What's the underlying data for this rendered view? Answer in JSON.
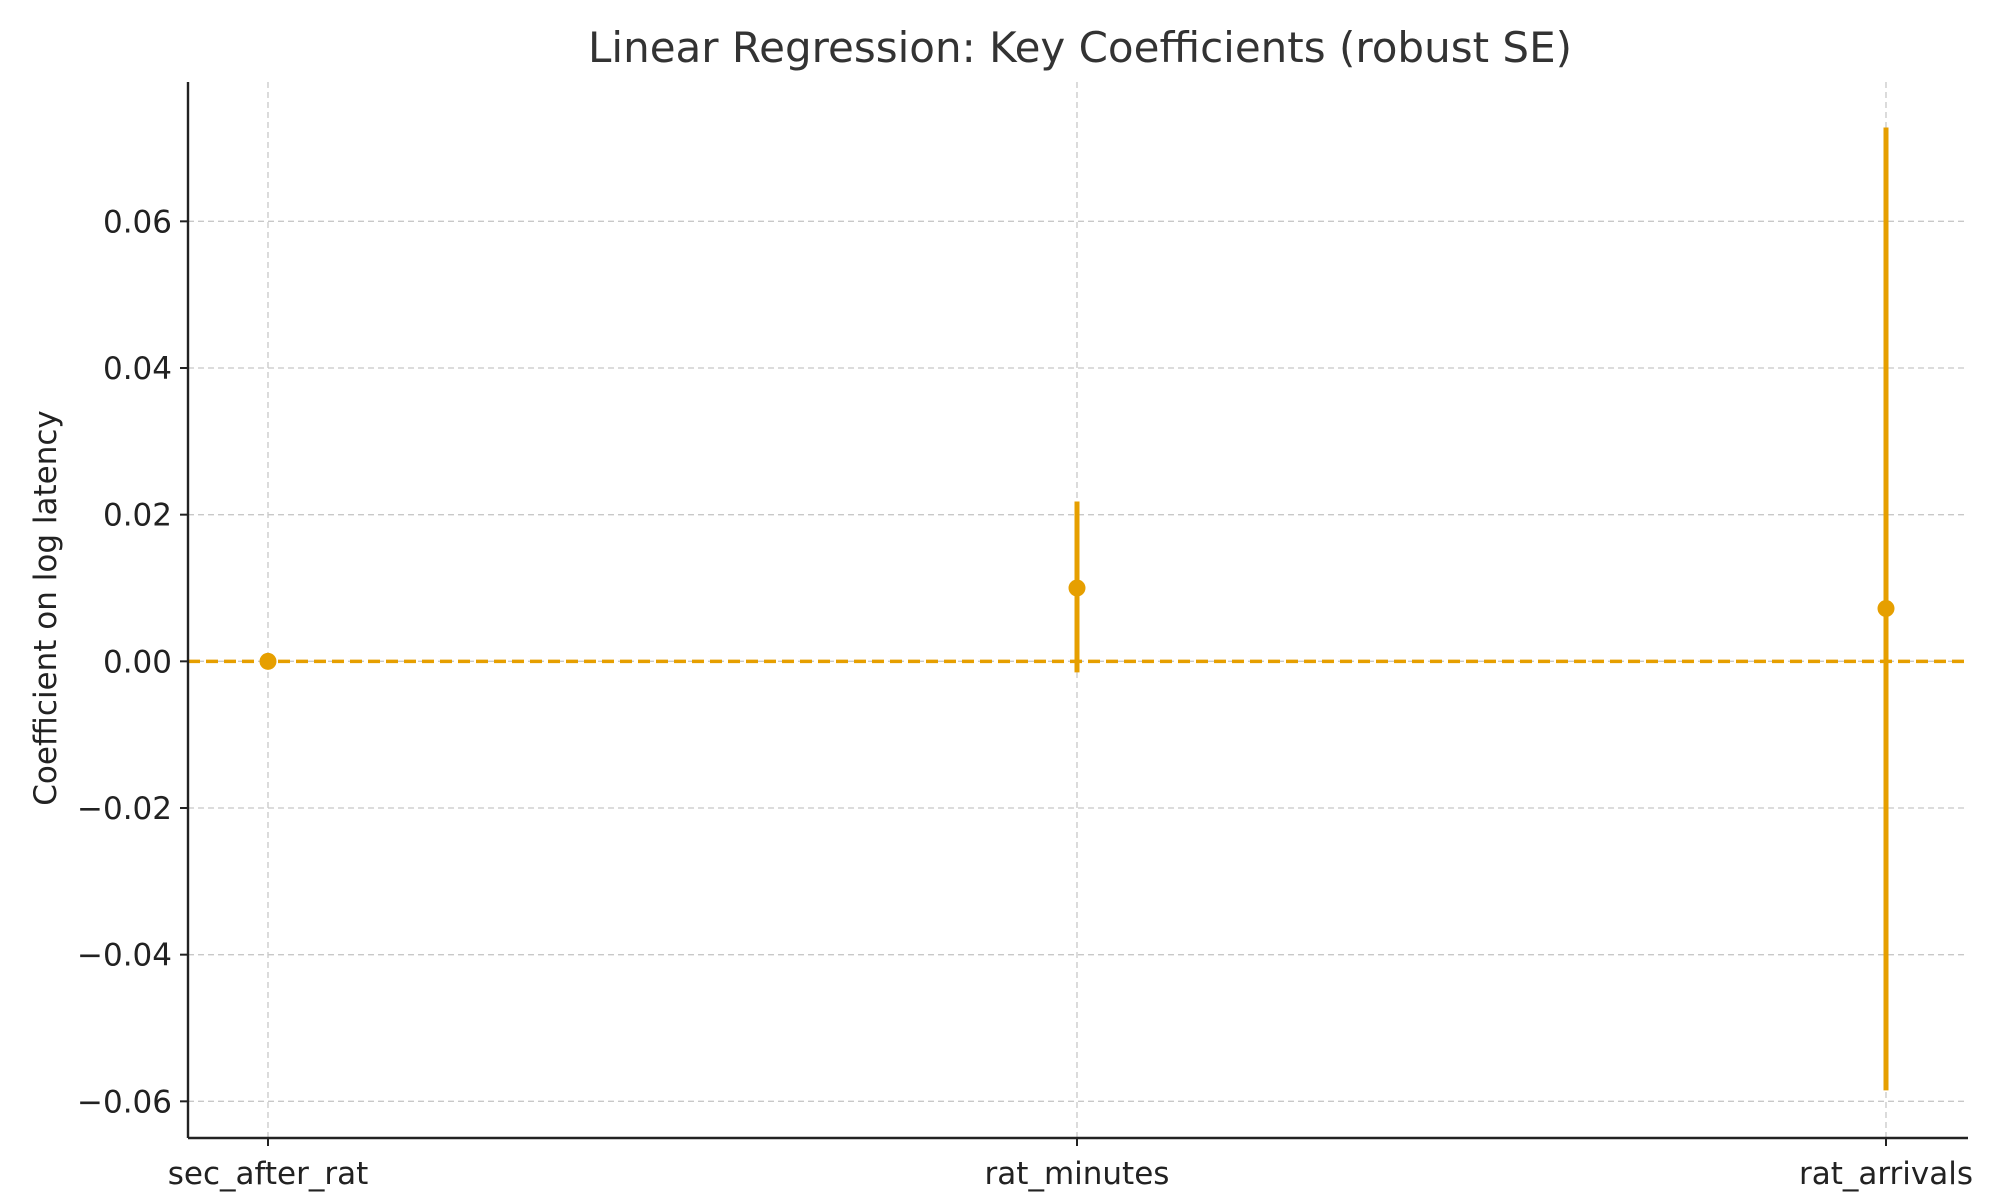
{
  "chart_data": {
    "type": "errorbar",
    "title": "Linear Regression: Key Coefficients (robust SE)",
    "xlabel": "",
    "ylabel": "Coefficient on log latency",
    "categories": [
      "sec_after_rat",
      "rat_minutes",
      "rat_arrivals"
    ],
    "estimates": [
      0.0,
      0.01,
      0.0072
    ],
    "ci_lower": [
      0.0,
      -0.0015,
      -0.0585
    ],
    "ci_upper": [
      0.0,
      0.0218,
      0.0728
    ],
    "ylim": [
      -0.065,
      0.079
    ],
    "yticks": [
      -0.06,
      -0.04,
      -0.02,
      0.0,
      0.02,
      0.04,
      0.06
    ],
    "ytick_labels": [
      "−0.06",
      "−0.04",
      "−0.02",
      "0.00",
      "0.02",
      "0.04",
      "0.06"
    ],
    "reference_line": 0.0,
    "grid": true,
    "color": "#E69F00"
  }
}
